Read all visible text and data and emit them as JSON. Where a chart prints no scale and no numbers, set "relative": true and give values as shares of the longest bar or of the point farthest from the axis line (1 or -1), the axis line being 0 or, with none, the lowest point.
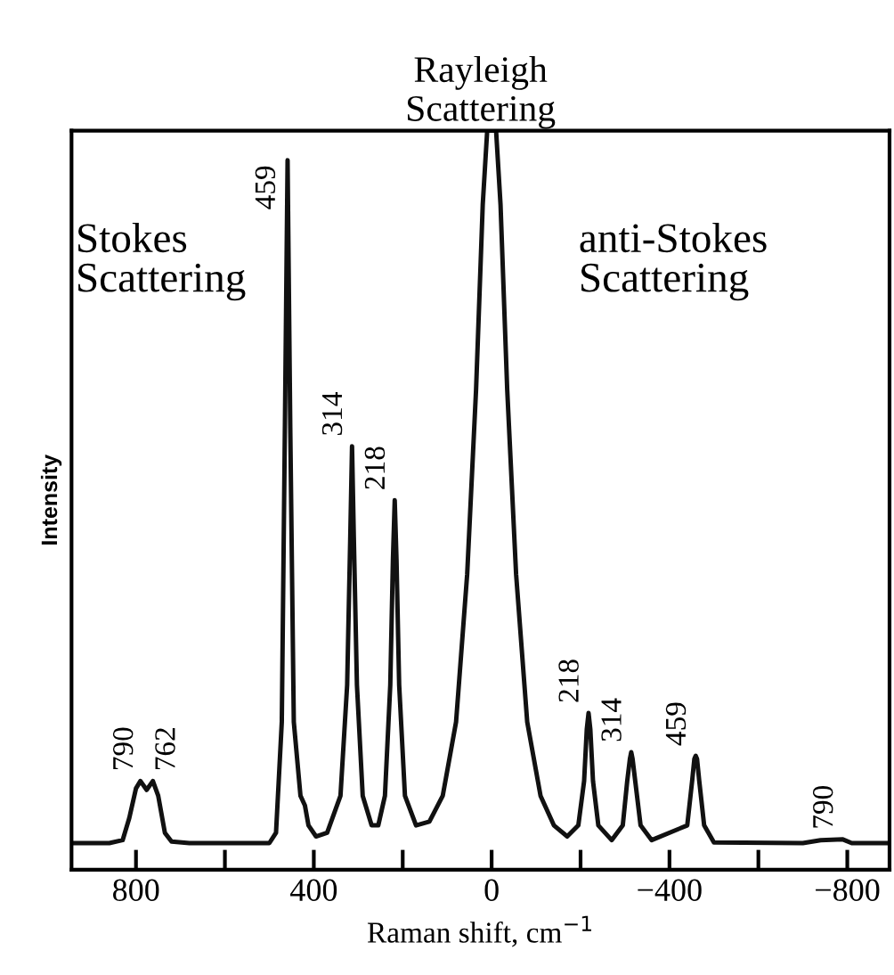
{
  "chart_data": {
    "type": "line",
    "relative": true,
    "title": "Rayleigh\nScattering",
    "xlabel": "Raman shift, cm$^{−1}$",
    "ylabel": "Intensity",
    "xlim": [
      945,
      -895
    ],
    "xticks": [
      {
        "value": 800,
        "label": "800"
      },
      {
        "value": 600,
        "label": null
      },
      {
        "value": 400,
        "label": "400"
      },
      {
        "value": 200,
        "label": null
      },
      {
        "value": 0,
        "label": "0"
      },
      {
        "value": -200,
        "label": null
      },
      {
        "value": -400,
        "label": "−400"
      },
      {
        "value": -600,
        "label": null
      },
      {
        "value": -800,
        "label": "−800"
      }
    ],
    "tick_labels": "x",
    "grid": false,
    "marker": "none",
    "line_style": "solid",
    "series": [
      {
        "color": "#111111",
        "x": [
          945,
          860,
          830,
          815,
          800,
          790,
          776,
          762,
          750,
          735,
          720,
          680,
          500,
          485,
          472,
          465,
          459,
          453,
          445,
          430,
          420,
          412,
          395,
          370,
          340,
          325,
          318,
          314,
          310,
          303,
          290,
          270,
          255,
          240,
          228,
          222,
          218,
          214,
          208,
          195,
          170,
          140,
          110,
          80,
          55,
          35,
          20,
          10,
          -10,
          -20,
          -35,
          -55,
          -80,
          -110,
          -140,
          -170,
          -195,
          -208,
          -214,
          -218,
          -222,
          -228,
          -240,
          -270,
          -295,
          -305,
          -311,
          -314,
          -317,
          -323,
          -335,
          -360,
          -440,
          -451,
          -456,
          -459,
          -462,
          -467,
          -478,
          -500,
          -700,
          -740,
          -790,
          -810,
          -895
        ],
        "values": [
          0.036,
          0.036,
          0.04,
          0.07,
          0.11,
          0.12,
          0.108,
          0.12,
          0.1,
          0.05,
          0.038,
          0.036,
          0.036,
          0.05,
          0.2,
          0.6,
          0.96,
          0.6,
          0.2,
          0.1,
          0.087,
          0.06,
          0.045,
          0.05,
          0.1,
          0.25,
          0.45,
          0.573,
          0.45,
          0.25,
          0.1,
          0.06,
          0.06,
          0.1,
          0.25,
          0.42,
          0.5,
          0.42,
          0.25,
          0.1,
          0.06,
          0.065,
          0.1,
          0.2,
          0.4,
          0.65,
          0.9,
          1.0,
          1.0,
          0.9,
          0.65,
          0.4,
          0.2,
          0.1,
          0.06,
          0.045,
          0.06,
          0.12,
          0.19,
          0.212,
          0.19,
          0.12,
          0.06,
          0.04,
          0.06,
          0.12,
          0.15,
          0.159,
          0.15,
          0.12,
          0.06,
          0.04,
          0.06,
          0.12,
          0.15,
          0.154,
          0.15,
          0.12,
          0.06,
          0.037,
          0.036,
          0.04,
          0.041,
          0.036,
          0.036
        ]
      }
    ],
    "annotations": [
      "Stokes\nScattering",
      "anti-Stokes\nScattering",
      {
        "text": "790",
        "x": 790,
        "y": 0.12
      },
      {
        "text": "762",
        "x": 762,
        "y": 0.12
      },
      {
        "text": "459",
        "x": 459,
        "y": 0.96
      },
      {
        "text": "314",
        "x": 314,
        "y": 0.573
      },
      {
        "text": "218",
        "x": 218,
        "y": 0.5
      },
      {
        "text": "218",
        "x": -218,
        "y": 0.212
      },
      {
        "text": "314",
        "x": -314,
        "y": 0.159
      },
      {
        "text": "459",
        "x": -459,
        "y": 0.154
      },
      {
        "text": "790",
        "x": -790,
        "y": 0.041
      }
    ]
  }
}
